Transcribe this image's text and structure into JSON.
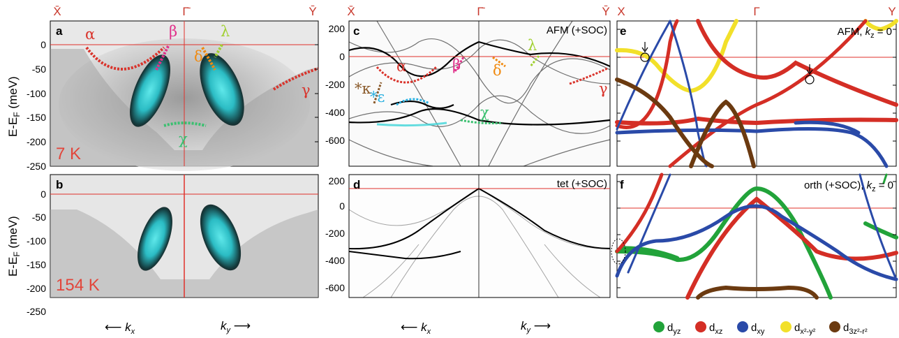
{
  "figure": {
    "top_labels": {
      "ab": [
        "X̄",
        "Γ̄",
        "Ȳ"
      ],
      "cd": [
        "X̄",
        "Γ̄",
        "Ȳ"
      ],
      "ef": [
        "X",
        "Γ",
        "Y"
      ]
    },
    "arpes": {
      "y_label": "E-E",
      "y_label_sub": "F",
      "y_label_unit": "(meV)",
      "y_ticks": [
        "0",
        "-50",
        "-100",
        "-150",
        "-200",
        "-250"
      ],
      "panel_a": {
        "letter": "a",
        "temperature": "7 K"
      },
      "panel_b": {
        "letter": "b",
        "temperature": "154 K"
      },
      "kx_label": "k",
      "kx_sub": "x",
      "ky_label": "k",
      "ky_sub": "y"
    },
    "calc": {
      "y_ticks": [
        "200",
        "0",
        "-200",
        "-400",
        "-600"
      ],
      "panel_c": {
        "letter": "c",
        "title": "AFM (+SOC)"
      },
      "panel_d": {
        "letter": "d",
        "title": "tet (+SOC)"
      }
    },
    "orbital": {
      "panel_e": {
        "letter": "e",
        "title_main": "AFM, ",
        "title_k": "k",
        "title_sub": "z",
        "title_end": " = 0"
      },
      "panel_f": {
        "letter": "f",
        "title_main": "orth (+SOC), ",
        "title_k": "k",
        "title_sub": "z",
        "title_end": " = 0"
      }
    },
    "band_labels": {
      "alpha": "α",
      "beta": "β",
      "lambda": "λ",
      "delta": "δ",
      "gamma": "γ",
      "chi": "χ",
      "kappa": "*κ",
      "epsilon": "*ε"
    },
    "legend": [
      {
        "base": "d",
        "sub": "yz",
        "color": "#22a33a"
      },
      {
        "base": "d",
        "sub": "xz",
        "color": "#d42e25"
      },
      {
        "base": "d",
        "sub": "xy",
        "color": "#2a4aa8"
      },
      {
        "base": "d",
        "sub": "x²-y²",
        "color": "#f2e02a"
      },
      {
        "base": "d",
        "sub": "3z²-r²",
        "color": "#6b3a10"
      }
    ],
    "colors": {
      "arpes_peak": "#3fd4d8",
      "fermi_line": "#e0302a",
      "alpha_dash": "#d9332b",
      "beta_dash": "#e0308a",
      "lambda_dash": "#a0d030",
      "delta_dash": "#f08a10",
      "chi_dash": "#3ac070",
      "kappa_dash": "#8a5a2a",
      "epsilon_dash": "#2ab0e0"
    }
  }
}
